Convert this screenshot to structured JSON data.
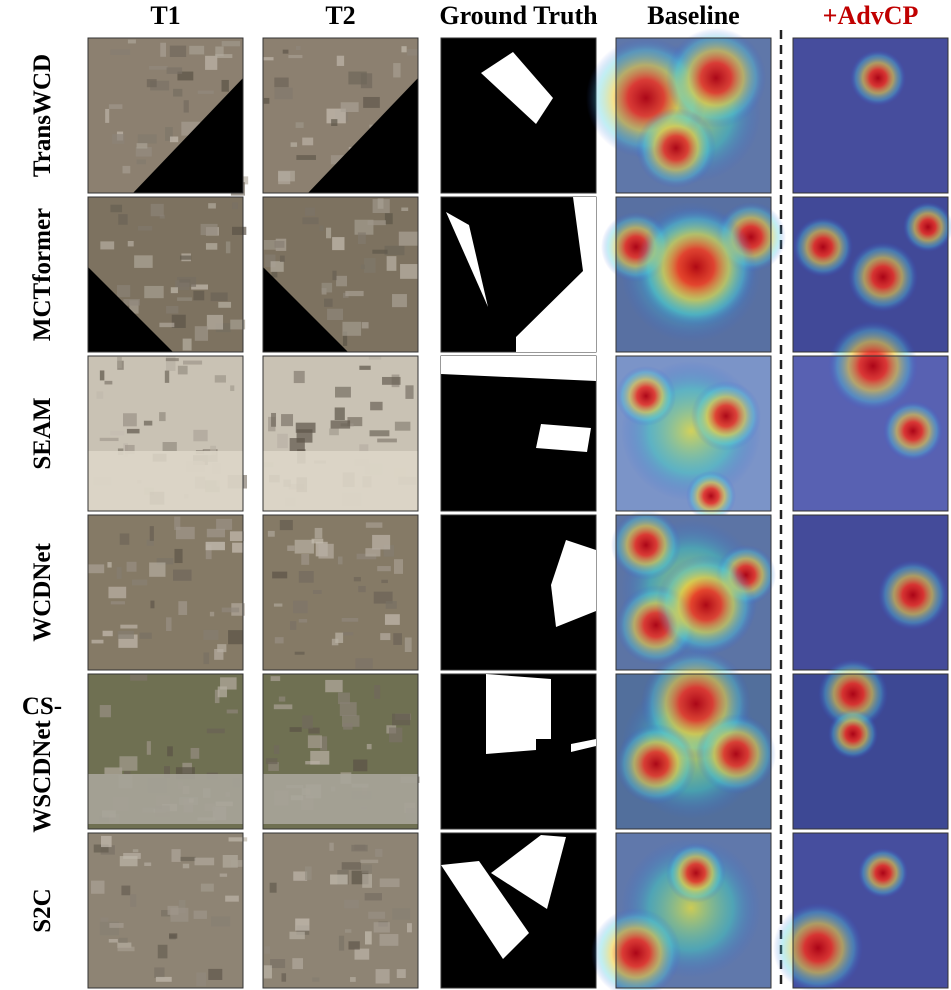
{
  "columns": [
    "T1",
    "T2",
    "Ground Truth",
    "Baseline",
    "+AdvCP"
  ],
  "rows": [
    {
      "label": "TransWCD"
    },
    {
      "label": "MCTformer"
    },
    {
      "label": "SEAM"
    },
    {
      "label": "WCDNet"
    },
    {
      "label_prefix": "CS-",
      "label": "WSCDNet"
    },
    {
      "label": "S2C"
    }
  ]
}
